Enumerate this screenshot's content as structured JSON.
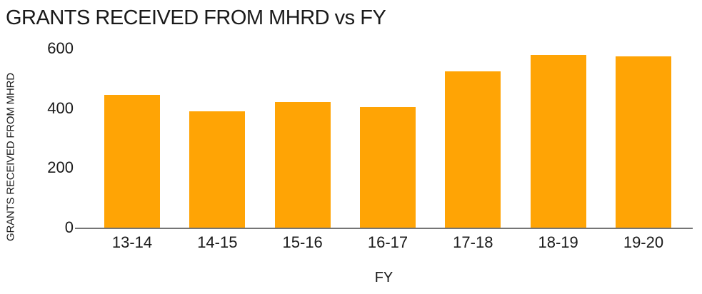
{
  "chart_data": {
    "type": "bar",
    "title": "GRANTS RECEIVED FROM MHRD vs FY",
    "xlabel": "FY",
    "ylabel": "GRANTS RECEIVED FROM MHRD",
    "categories": [
      "13-14",
      "14-15",
      "15-16",
      "16-17",
      "17-18",
      "18-19",
      "19-20"
    ],
    "values": [
      445,
      390,
      420,
      405,
      525,
      580,
      575
    ],
    "yticks": [
      0,
      200,
      400,
      600
    ],
    "ylim": [
      0,
      600
    ],
    "grid": false,
    "legend_position": "none",
    "bar_color": "#FFA405",
    "axis_line_color": "#757575",
    "text_color": "#1A1A1A",
    "background_color": "#FFFFFF"
  }
}
